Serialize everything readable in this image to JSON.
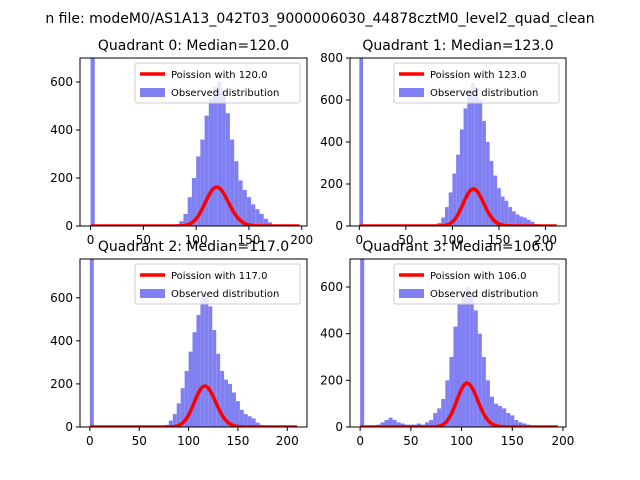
{
  "figure": {
    "suptitle": "n file: modeM0/AS1A13_042T03_9000006030_44878cztM0_level2_quad_clean"
  },
  "colors": {
    "histogram": "#8080f2",
    "poisson": "#ff0000",
    "axis": "#000000"
  },
  "chart_data": [
    {
      "type": "bar",
      "title": "Quadrant 0: Median=120.0",
      "xlim": [
        -10,
        205
      ],
      "ylim": [
        0,
        700
      ],
      "xticks": [
        0,
        50,
        100,
        150,
        200
      ],
      "yticks": [
        0,
        200,
        400,
        600
      ],
      "bin_width": 4,
      "hist_x": [
        0,
        76,
        80,
        84,
        88,
        92,
        96,
        100,
        104,
        108,
        112,
        116,
        120,
        124,
        128,
        132,
        136,
        140,
        144,
        148,
        152,
        156,
        160,
        164,
        168,
        172
      ],
      "hist_values": [
        700,
        5,
        8,
        20,
        50,
        120,
        200,
        290,
        360,
        460,
        530,
        580,
        600,
        560,
        470,
        360,
        270,
        190,
        150,
        120,
        90,
        70,
        50,
        30,
        15,
        5
      ],
      "poisson": {
        "lambda": 120.0,
        "x_range": [
          0,
          198
        ],
        "scale": 4450
      },
      "legend": {
        "position": "upper-right",
        "poisson_label": "Poission with 120.0",
        "hist_label": "Observed distribution"
      }
    },
    {
      "type": "bar",
      "title": "Quadrant 1: Median=123.0",
      "xlim": [
        -10,
        222
      ],
      "ylim": [
        0,
        800
      ],
      "xticks": [
        0,
        50,
        100,
        150,
        200
      ],
      "yticks": [
        0,
        200,
        400,
        600,
        800
      ],
      "bin_width": 4,
      "hist_x": [
        0,
        84,
        88,
        92,
        96,
        100,
        104,
        108,
        112,
        116,
        120,
        124,
        128,
        132,
        136,
        140,
        144,
        148,
        152,
        156,
        160,
        164,
        168,
        172,
        176,
        180,
        184,
        188,
        192
      ],
      "hist_values": [
        800,
        15,
        40,
        90,
        160,
        250,
        340,
        460,
        560,
        640,
        680,
        660,
        600,
        500,
        400,
        310,
        240,
        180,
        140,
        120,
        90,
        70,
        55,
        45,
        40,
        30,
        20,
        10,
        5
      ],
      "poisson": {
        "lambda": 123.0,
        "x_range": [
          0,
          212
        ],
        "scale": 4900
      },
      "legend": {
        "position": "upper-right",
        "poisson_label": "Poission with 123.0",
        "hist_label": "Observed distribution"
      }
    },
    {
      "type": "bar",
      "title": "Quadrant 2: Median=117.0",
      "xlim": [
        -10,
        220
      ],
      "ylim": [
        0,
        780
      ],
      "xticks": [
        0,
        50,
        100,
        150,
        200
      ],
      "yticks": [
        0,
        200,
        400,
        600
      ],
      "bin_width": 4,
      "hist_x": [
        0,
        76,
        80,
        84,
        88,
        92,
        96,
        100,
        104,
        108,
        112,
        116,
        120,
        124,
        128,
        132,
        136,
        140,
        144,
        148,
        152,
        156,
        160,
        164,
        168,
        172
      ],
      "hist_values": [
        780,
        10,
        30,
        60,
        110,
        180,
        260,
        350,
        440,
        520,
        600,
        620,
        560,
        450,
        340,
        260,
        220,
        200,
        160,
        120,
        80,
        60,
        50,
        40,
        20,
        10
      ],
      "poisson": {
        "lambda": 117.0,
        "x_range": [
          0,
          210
        ],
        "scale": 5150
      },
      "legend": {
        "position": "upper-right",
        "poisson_label": "Poission with 117.0",
        "hist_label": "Observed distribution"
      }
    },
    {
      "type": "bar",
      "title": "Quadrant 3: Median=106.0",
      "xlim": [
        -10,
        203
      ],
      "ylim": [
        0,
        720
      ],
      "xticks": [
        0,
        50,
        100,
        150,
        200
      ],
      "yticks": [
        0,
        200,
        400,
        600
      ],
      "bin_width": 4,
      "hist_x": [
        0,
        12,
        16,
        20,
        24,
        28,
        32,
        36,
        40,
        44,
        48,
        52,
        56,
        60,
        64,
        68,
        72,
        76,
        80,
        84,
        88,
        92,
        96,
        100,
        104,
        108,
        112,
        116,
        120,
        124,
        128,
        132,
        136,
        140,
        144,
        148,
        152,
        156,
        160,
        164,
        168
      ],
      "hist_values": [
        720,
        5,
        10,
        20,
        30,
        40,
        30,
        20,
        15,
        10,
        10,
        10,
        15,
        10,
        20,
        30,
        60,
        80,
        120,
        200,
        300,
        430,
        530,
        580,
        600,
        570,
        500,
        400,
        300,
        200,
        130,
        100,
        90,
        80,
        60,
        50,
        30,
        20,
        15,
        10,
        5
      ],
      "poisson": {
        "lambda": 106.0,
        "x_range": [
          0,
          195
        ],
        "scale": 4850
      },
      "legend": {
        "position": "upper-right",
        "poisson_label": "Poission with 106.0",
        "hist_label": "Observed distribution"
      }
    }
  ]
}
